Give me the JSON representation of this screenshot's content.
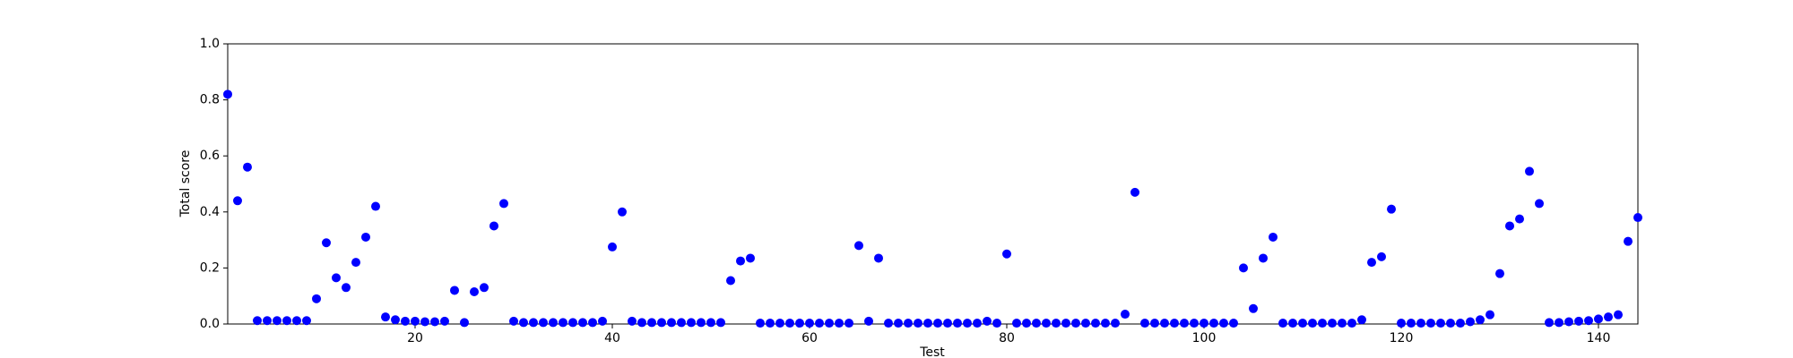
{
  "chart_data": {
    "type": "scatter",
    "xlabel": "Test",
    "ylabel": "Total score",
    "color": "#0000ff",
    "x": [
      1,
      2,
      3,
      4,
      5,
      6,
      7,
      8,
      9,
      10,
      11,
      12,
      13,
      14,
      15,
      16,
      17,
      18,
      19,
      20,
      21,
      22,
      23,
      24,
      25,
      26,
      27,
      28,
      29,
      30,
      31,
      32,
      33,
      34,
      35,
      36,
      37,
      38,
      39,
      40,
      41,
      42,
      43,
      44,
      45,
      46,
      47,
      48,
      49,
      50,
      51,
      52,
      53,
      54,
      55,
      56,
      57,
      58,
      59,
      60,
      61,
      62,
      63,
      64,
      65,
      66,
      67,
      68,
      69,
      70,
      71,
      72,
      73,
      74,
      75,
      76,
      77,
      78,
      79,
      80,
      81,
      82,
      83,
      84,
      85,
      86,
      87,
      88,
      89,
      90,
      91,
      92,
      93,
      94,
      95,
      96,
      97,
      98,
      99,
      100,
      101,
      102,
      103,
      104,
      105,
      106,
      107,
      108,
      109,
      110,
      111,
      112,
      113,
      114,
      115,
      116,
      117,
      118,
      119,
      120,
      121,
      122,
      123,
      124,
      125,
      126,
      127,
      128,
      129,
      130,
      131,
      132,
      133,
      134,
      135,
      136,
      137,
      138,
      139,
      140,
      141,
      142,
      143,
      144
    ],
    "values": [
      0.82,
      0.44,
      0.56,
      0.012,
      0.012,
      0.012,
      0.012,
      0.012,
      0.012,
      0.09,
      0.29,
      0.165,
      0.13,
      0.22,
      0.31,
      0.42,
      0.025,
      0.015,
      0.01,
      0.01,
      0.008,
      0.008,
      0.01,
      0.12,
      0.005,
      0.115,
      0.13,
      0.35,
      0.43,
      0.01,
      0.005,
      0.005,
      0.005,
      0.005,
      0.005,
      0.005,
      0.005,
      0.005,
      0.01,
      0.275,
      0.4,
      0.01,
      0.005,
      0.005,
      0.005,
      0.005,
      0.005,
      0.005,
      0.005,
      0.005,
      0.005,
      0.155,
      0.225,
      0.235,
      0.003,
      0.003,
      0.003,
      0.003,
      0.003,
      0.003,
      0.003,
      0.003,
      0.003,
      0.003,
      0.28,
      0.01,
      0.235,
      0.003,
      0.003,
      0.003,
      0.003,
      0.003,
      0.003,
      0.003,
      0.003,
      0.003,
      0.003,
      0.01,
      0.003,
      0.25,
      0.003,
      0.003,
      0.003,
      0.003,
      0.003,
      0.003,
      0.003,
      0.003,
      0.003,
      0.003,
      0.003,
      0.035,
      0.47,
      0.003,
      0.003,
      0.003,
      0.003,
      0.003,
      0.003,
      0.003,
      0.003,
      0.003,
      0.003,
      0.2,
      0.055,
      0.235,
      0.31,
      0.003,
      0.003,
      0.003,
      0.003,
      0.003,
      0.003,
      0.003,
      0.003,
      0.015,
      0.22,
      0.24,
      0.41,
      0.003,
      0.003,
      0.003,
      0.003,
      0.003,
      0.003,
      0.003,
      0.008,
      0.015,
      0.033,
      0.18,
      0.35,
      0.375,
      0.545,
      0.43,
      0.005,
      0.005,
      0.008,
      0.01,
      0.012,
      0.018,
      0.025,
      0.033,
      0.295,
      0.38
    ],
    "xlim": [
      1,
      144
    ],
    "xticks": [
      20,
      40,
      60,
      80,
      100,
      120,
      140
    ],
    "ylim": [
      0,
      1
    ],
    "yticks": [
      {
        "value": 0,
        "label": "0.0"
      },
      0.2,
      0.4,
      0.6,
      0.8,
      {
        "value": 1,
        "label": "1.0"
      }
    ]
  }
}
